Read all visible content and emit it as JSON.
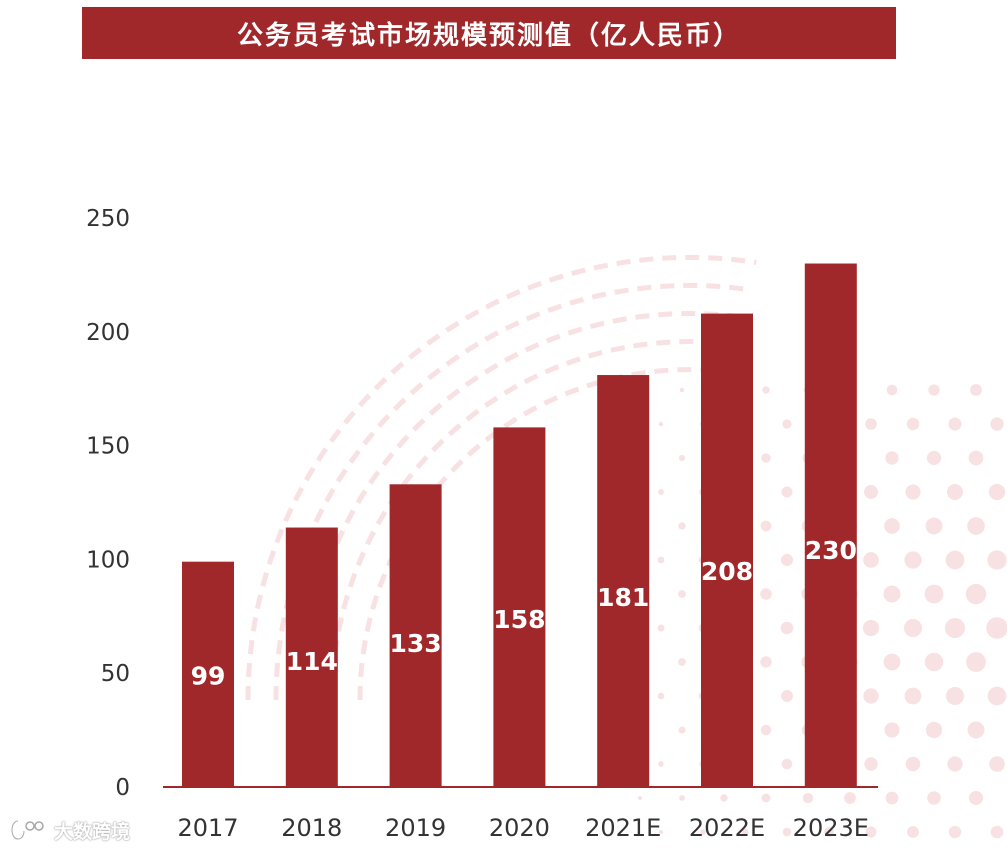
{
  "colors": {
    "accent": "#a0282a",
    "title_text": "#ffffff",
    "axis_text": "#333333",
    "deco": "#f2c9cb"
  },
  "watermark": "大数跨境",
  "chart_data": {
    "type": "bar",
    "title": "公务员考试市场规模预测值（亿人民币）",
    "categories": [
      "2017",
      "2018",
      "2019",
      "2020",
      "2021E",
      "2022E",
      "2023E"
    ],
    "values": [
      99,
      114,
      133,
      158,
      181,
      208,
      230
    ],
    "ylim": [
      0,
      250
    ],
    "yticks": [
      "0",
      "50",
      "100",
      "150",
      "200",
      "250"
    ],
    "xlabel": "",
    "ylabel": "",
    "grid": false,
    "legend": "none"
  }
}
